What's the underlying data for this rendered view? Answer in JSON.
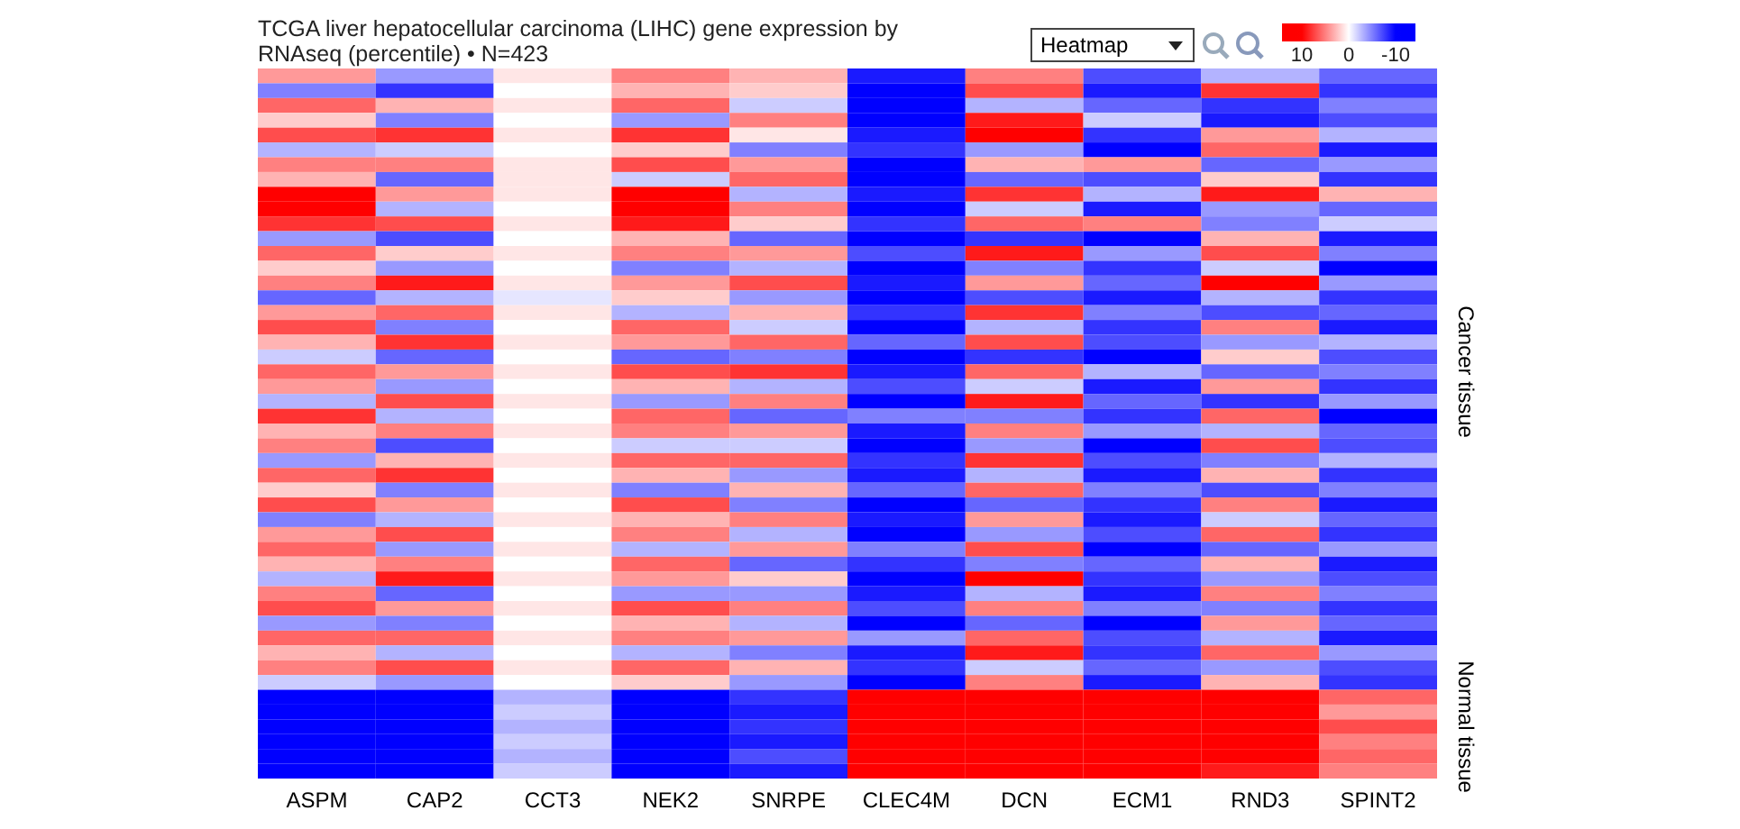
{
  "chart_data": {
    "type": "heatmap",
    "title": "TCGA liver hepatocellular carcinoma (LIHC) gene expression by RNAseq (percentile) • N=423",
    "annotations": [
      "Heatmap"
    ],
    "categories": [
      "ASPM",
      "CAP2",
      "CCT3",
      "NEK2",
      "SNRPE",
      "CLEC4M",
      "DCN",
      "ECM1",
      "RND3",
      "SPINT2"
    ],
    "clim": [
      -10,
      10
    ],
    "cticks": [
      10,
      0,
      -10
    ],
    "y_categories": [
      null,
      null,
      null,
      null,
      null,
      null,
      null,
      null,
      null,
      null,
      null,
      null,
      null,
      null,
      null,
      null,
      null,
      null,
      null,
      null,
      null,
      null,
      null,
      null,
      null,
      null,
      null,
      null,
      null,
      null,
      null,
      null,
      null,
      null,
      null,
      null,
      null,
      null,
      null,
      null,
      null,
      null,
      null,
      null,
      null,
      null,
      null,
      null
    ],
    "y2_categories": [
      null,
      null,
      null,
      null,
      null,
      null,
      null,
      null,
      null,
      null,
      null,
      null,
      null,
      null,
      null,
      null,
      null,
      null,
      null,
      null,
      "Cancer tissue",
      null,
      null,
      null,
      null,
      null,
      null,
      null,
      null,
      null,
      null,
      null,
      null,
      null,
      null,
      null,
      null,
      null,
      null,
      null,
      null,
      null,
      null,
      null,
      "Normal tissue",
      null,
      null,
      null
    ],
    "cells": [
      [
        4,
        -4,
        1,
        5,
        3,
        -9,
        5,
        -7,
        -3,
        -6
      ],
      [
        -5,
        -8,
        0,
        3,
        2,
        -10,
        7,
        -9,
        8,
        -8
      ],
      [
        6,
        3,
        1,
        6,
        -2,
        -10,
        -3,
        -6,
        -8,
        -5
      ],
      [
        2,
        -5,
        0,
        -4,
        5,
        -10,
        9,
        -2,
        -9,
        -7
      ],
      [
        7,
        8,
        1,
        8,
        1,
        -9,
        10,
        -8,
        4,
        -3
      ],
      [
        -3,
        -2,
        0,
        2,
        -5,
        -8,
        -4,
        -10,
        6,
        -9
      ],
      [
        5,
        5,
        1,
        7,
        4,
        -10,
        3,
        4,
        -6,
        -4
      ],
      [
        3,
        -6,
        1,
        -2,
        6,
        -10,
        -6,
        -7,
        2,
        -8
      ],
      [
        10,
        4,
        1,
        10,
        -3,
        -9,
        8,
        -3,
        9,
        3
      ],
      [
        10,
        -3,
        0,
        10,
        5,
        -10,
        -2,
        -9,
        -4,
        -6
      ],
      [
        8,
        7,
        1,
        9,
        2,
        -8,
        6,
        5,
        -5,
        -2
      ],
      [
        -4,
        -7,
        0,
        3,
        -6,
        -10,
        -8,
        -10,
        3,
        -9
      ],
      [
        6,
        2,
        1,
        5,
        4,
        -7,
        9,
        -4,
        7,
        -5
      ],
      [
        2,
        -4,
        0,
        -5,
        -3,
        -10,
        -5,
        -8,
        -2,
        -10
      ],
      [
        5,
        9,
        1,
        4,
        7,
        -9,
        4,
        -6,
        10,
        -4
      ],
      [
        -6,
        -3,
        -1,
        2,
        -4,
        -10,
        -7,
        -9,
        -3,
        -8
      ],
      [
        4,
        6,
        1,
        -3,
        3,
        -8,
        8,
        -5,
        -7,
        -6
      ],
      [
        7,
        -5,
        0,
        6,
        -2,
        -10,
        -3,
        -8,
        5,
        -9
      ],
      [
        3,
        8,
        1,
        4,
        6,
        -6,
        7,
        -7,
        -4,
        -3
      ],
      [
        -2,
        -6,
        0,
        -6,
        -5,
        -10,
        -8,
        -10,
        2,
        -7
      ],
      [
        6,
        4,
        1,
        7,
        8,
        -9,
        6,
        -3,
        -6,
        -5
      ],
      [
        4,
        -4,
        0,
        3,
        -3,
        -7,
        -2,
        -9,
        4,
        -8
      ],
      [
        -3,
        7,
        1,
        -4,
        5,
        -10,
        9,
        -6,
        -8,
        -4
      ],
      [
        8,
        -3,
        0,
        6,
        -6,
        -5,
        -5,
        -8,
        6,
        -10
      ],
      [
        3,
        5,
        1,
        5,
        4,
        -9,
        5,
        -4,
        -3,
        -6
      ],
      [
        5,
        -7,
        0,
        -2,
        -2,
        -10,
        -4,
        -10,
        7,
        -7
      ],
      [
        -4,
        3,
        1,
        6,
        6,
        -8,
        8,
        -7,
        -5,
        -3
      ],
      [
        6,
        8,
        0,
        3,
        -4,
        -9,
        -3,
        -9,
        3,
        -8
      ],
      [
        2,
        -5,
        1,
        -5,
        3,
        -6,
        6,
        -5,
        -7,
        -5
      ],
      [
        7,
        4,
        0,
        7,
        -5,
        -10,
        -6,
        -8,
        5,
        -9
      ],
      [
        -5,
        -3,
        1,
        3,
        5,
        -9,
        4,
        -9,
        -2,
        -6
      ],
      [
        4,
        7,
        0,
        5,
        -3,
        -10,
        -4,
        -7,
        6,
        -8
      ],
      [
        6,
        -4,
        1,
        -3,
        4,
        -5,
        7,
        -10,
        -6,
        -4
      ],
      [
        3,
        5,
        0,
        6,
        -6,
        -8,
        -5,
        -6,
        3,
        -9
      ],
      [
        -3,
        9,
        1,
        4,
        2,
        -10,
        10,
        -8,
        -4,
        -7
      ],
      [
        5,
        -6,
        0,
        -4,
        -4,
        -9,
        -3,
        -9,
        5,
        -5
      ],
      [
        7,
        4,
        1,
        7,
        5,
        -7,
        5,
        -5,
        -5,
        -8
      ],
      [
        -4,
        -5,
        0,
        3,
        -3,
        -10,
        -6,
        -10,
        4,
        -6
      ],
      [
        6,
        6,
        1,
        5,
        4,
        -4,
        6,
        -7,
        -3,
        -9
      ],
      [
        3,
        -3,
        0,
        -3,
        -5,
        -9,
        9,
        -8,
        6,
        -4
      ],
      [
        5,
        7,
        1,
        6,
        3,
        -8,
        -2,
        -6,
        -4,
        -7
      ],
      [
        -2,
        -4,
        0,
        2,
        -4,
        -10,
        5,
        -9,
        3,
        -8
      ],
      [
        -10,
        -10,
        -3,
        -10,
        -8,
        10,
        10,
        10,
        10,
        6
      ],
      [
        -10,
        -10,
        -2,
        -10,
        -9,
        10,
        10,
        10,
        10,
        4
      ],
      [
        -10,
        -10,
        -3,
        -10,
        -8,
        10,
        10,
        10,
        10,
        7
      ],
      [
        -10,
        -10,
        -2,
        -10,
        -9,
        10,
        10,
        10,
        10,
        5
      ],
      [
        -10,
        -10,
        -3,
        -10,
        -7,
        10,
        10,
        10,
        10,
        6
      ],
      [
        -10,
        -10,
        -2,
        -10,
        -9,
        10,
        10,
        10,
        9,
        5
      ]
    ]
  }
}
